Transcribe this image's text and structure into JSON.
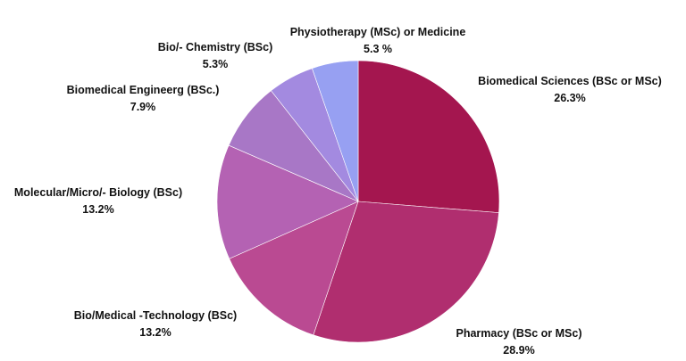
{
  "chart_data": {
    "type": "pie",
    "title": "",
    "slices": [
      {
        "label": "Biomedical Sciences (BSc or MSc)",
        "value": 26.3,
        "display": "26.3%",
        "color": "#a4164f"
      },
      {
        "label": "Pharmacy (BSc or MSc)",
        "value": 28.9,
        "display": "28.9%",
        "color": "#b02e6f"
      },
      {
        "label": "Bio/Medical -Technology (BSc)",
        "value": 13.2,
        "display": "13.2%",
        "color": "#ba4a92"
      },
      {
        "label": "Molecular/Micro/- Biology (BSc)",
        "value": 13.2,
        "display": "13.2%",
        "color": "#b462b3"
      },
      {
        "label": "Biomedical Engineerg (BSc.)",
        "value": 7.9,
        "display": "7.9%",
        "color": "#a877c6"
      },
      {
        "label": "Bio/- Chemistry (BSc)",
        "value": 5.3,
        "display": "5.3%",
        "color": "#a38ae0"
      },
      {
        "label": "Physiotherapy (MSc) or Medicine",
        "value": 5.3,
        "display": "5.3 %",
        "color": "#97a0f2"
      }
    ]
  }
}
